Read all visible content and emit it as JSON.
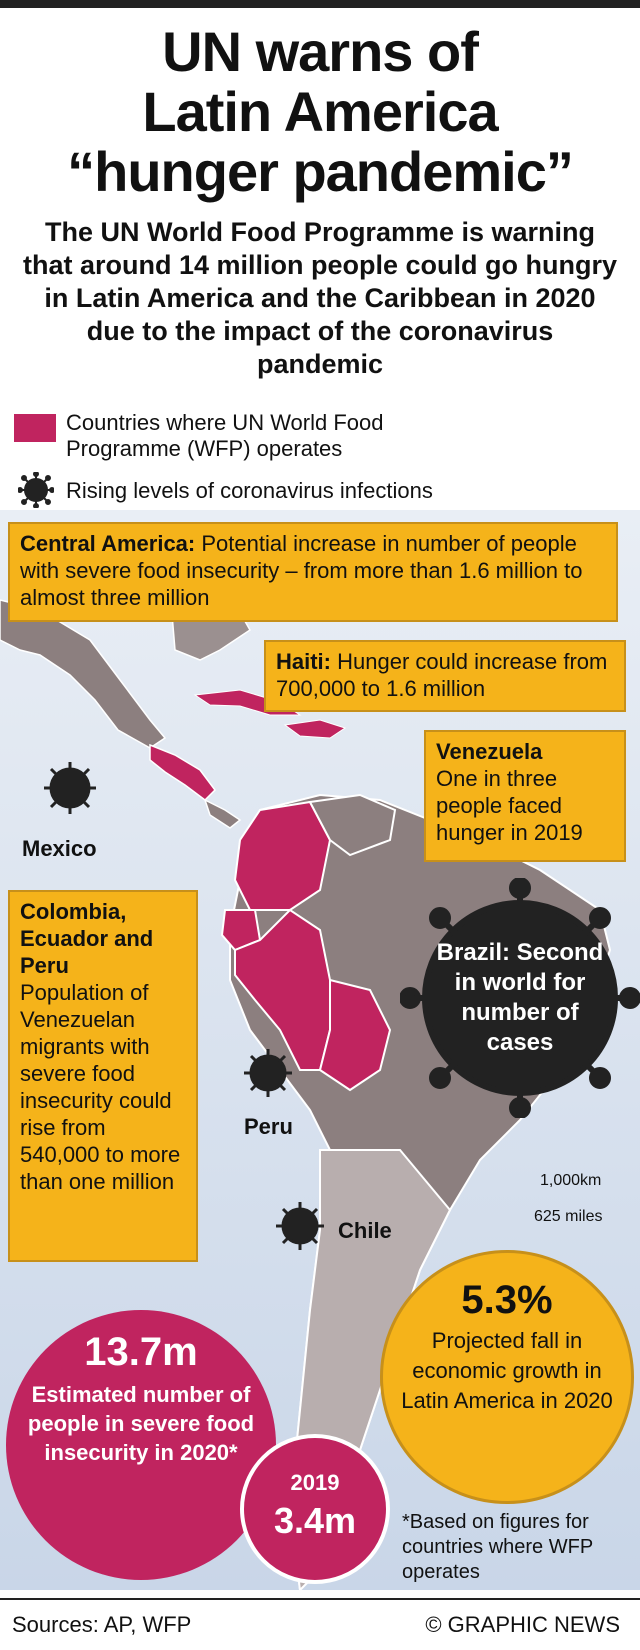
{
  "title": [
    "UN warns of",
    "Latin America",
    "“hunger pandemic”"
  ],
  "subtitle": "The UN World Food Programme is warning that around 14 million people could go hungry in Latin America and the Caribbean in 2020 due to the impact of the coronavirus pandemic",
  "legend": {
    "wfp_label": "Countries where UN World Food Programme (WFP) operates",
    "virus_label": "Rising levels of coronavirus infections",
    "wfp_color": "#c0245f",
    "virus_color": "#222222"
  },
  "callouts": {
    "central_america": {
      "head": "Central America:",
      "body": " Potential increase in number of people with severe food insecurity – from more than 1.6 million to almost three million"
    },
    "haiti": {
      "head": "Haiti:",
      "body": " Hunger could increase from 700,000 to 1.6 million"
    },
    "venezuela": {
      "head": "Venezuela",
      "body": "One in three people faced hunger in 2019"
    },
    "colombia": {
      "head": "Colombia, Ecuador and Peru",
      "body": "Population of Venezuelan migrants with severe food insecurity could rise from 540,000 to more than one million"
    }
  },
  "map_labels": {
    "mexico": "Mexico",
    "peru": "Peru",
    "chile": "Chile"
  },
  "brazil": "Brazil: Second in world for number of cases",
  "scale": {
    "km": "1,000km",
    "miles": "625 miles"
  },
  "stats": {
    "growth_value": "5.3%",
    "growth_text": "Projected fall in economic growth in Latin America in 2020",
    "insecurity_value": "13.7m",
    "insecurity_text": "Estimated number of people in severe food insecurity in 2020*",
    "year_2019": "2019",
    "value_2019": "3.4m"
  },
  "note": "*Based on figures for countries where WFP operates",
  "sources": "Sources: AP, WFP",
  "credit": "© GRAPHIC NEWS",
  "colors": {
    "accent_yellow": "#f5b31a",
    "magenta": "#c0245f",
    "land": "#8c7f7f",
    "sea": "#dce5f0"
  }
}
